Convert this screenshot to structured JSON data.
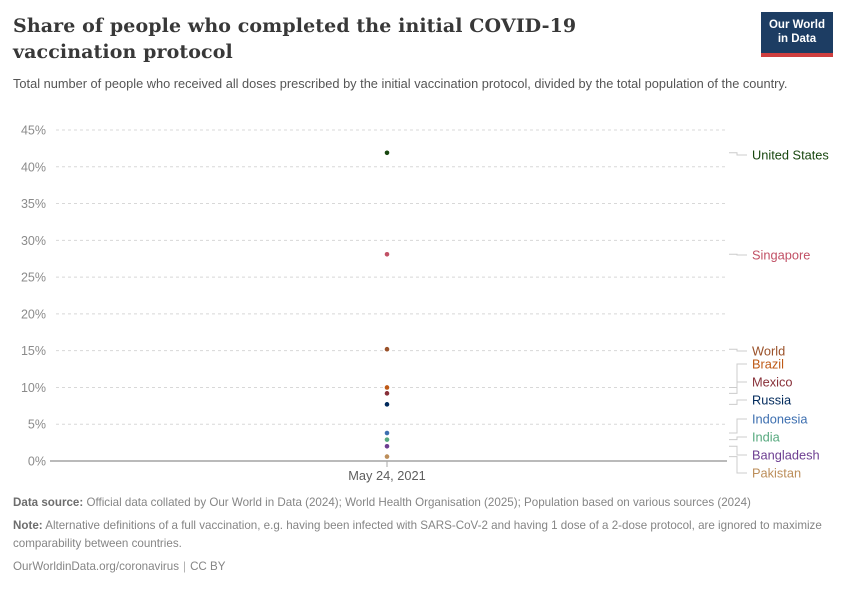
{
  "header": {
    "title": "Share of people who completed the initial COVID-19 vaccination protocol",
    "subtitle": "Total number of people who received all doses prescribed by the initial vaccination protocol, divided by the total population of the country.",
    "logo": {
      "line1": "Our World",
      "line2": "in Data"
    }
  },
  "chart_data": {
    "type": "scatter",
    "title": "Share of people who completed the initial COVID-19 vaccination protocol",
    "x": [
      "May 24, 2021"
    ],
    "x_tick_label": "May 24, 2021",
    "ylabel": "",
    "ylim": [
      0,
      45
    ],
    "ytick_step": 5,
    "ytick_suffix": "%",
    "grid": true,
    "legend_position": "right",
    "series": [
      {
        "name": "United States",
        "value": 41.9,
        "color": "#18470F"
      },
      {
        "name": "Singapore",
        "value": 28.1,
        "color": "#C15065"
      },
      {
        "name": "World",
        "value": 15.2,
        "color": "#9A5129"
      },
      {
        "name": "Brazil",
        "value": 10.0,
        "color": "#BE5915"
      },
      {
        "name": "Mexico",
        "value": 9.2,
        "color": "#883039"
      },
      {
        "name": "Russia",
        "value": 7.7,
        "color": "#00295B"
      },
      {
        "name": "Indonesia",
        "value": 3.8,
        "color": "#3D6FB0"
      },
      {
        "name": "India",
        "value": 2.9,
        "color": "#56A97E"
      },
      {
        "name": "Bangladesh",
        "value": 2.0,
        "color": "#6D3E91"
      },
      {
        "name": "Pakistan",
        "value": 0.6,
        "color": "#BC8E5A"
      }
    ]
  },
  "footer": {
    "data_source_label": "Data source:",
    "data_source_text": " Official data collated by Our World in Data (2024); World Health Organisation (2025); Population based on various sources (2024)",
    "note_label": "Note:",
    "note_text": " Alternative definitions of a full vaccination, e.g. having been infected with SARS-CoV-2 and having 1 dose of a 2-dose protocol, are ignored to maximize comparability between countries.",
    "url_text": "OurWorldinData.org/coronavirus",
    "separator": "|",
    "license_text": "CC BY"
  }
}
